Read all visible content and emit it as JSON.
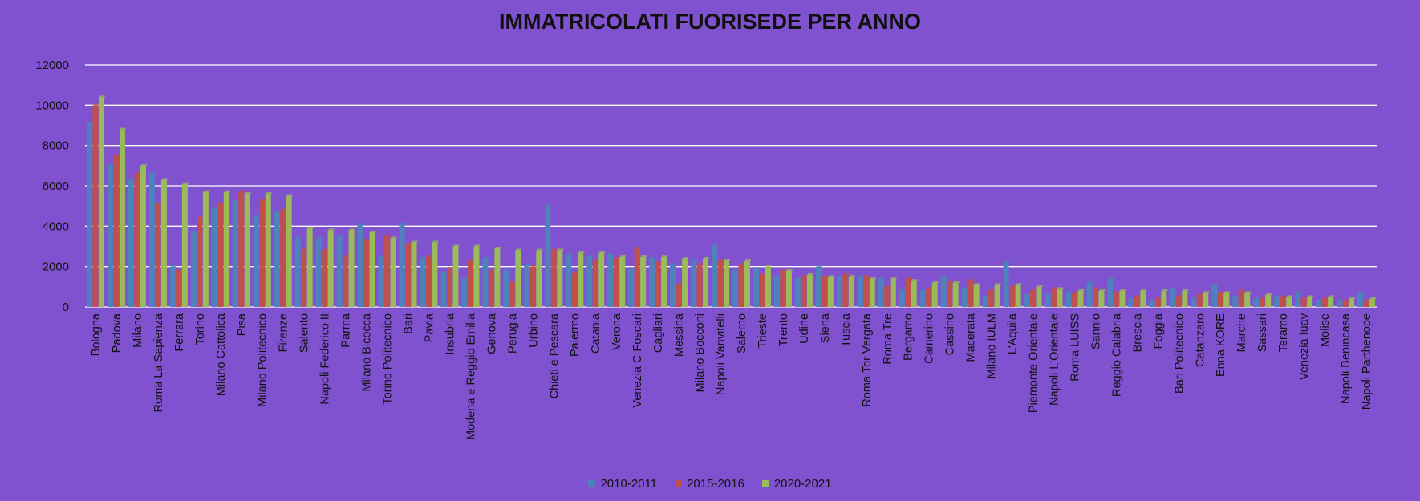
{
  "chart_data": {
    "type": "bar",
    "title": "IMMATRICOLATI FUORISEDE PER ANNO",
    "ylim": [
      0,
      12000
    ],
    "yticks": [
      0,
      2000,
      4000,
      6000,
      8000,
      10000,
      12000
    ],
    "grid": true,
    "legend_position": "bottom",
    "categories": [
      "Bologna",
      "Padova",
      "Milano",
      "Roma La Sapienza",
      "Ferrara",
      "Torino",
      "Milano Cattolica",
      "Pisa",
      "Milano Politecnico",
      "Firenze",
      "Salento",
      "Napoli Federico II",
      "Parma",
      "Milano Bicocca",
      "Torino Politecnico",
      "Bari",
      "Pavia",
      "Insubria",
      "Modena e Reggio Emilia",
      "Genova",
      "Perugia",
      "Urbino",
      "Chieti e Pescara",
      "Palermo",
      "Catania",
      "Verona",
      "Venezia C Foscari",
      "Cagliari",
      "Messina",
      "Milano Bocconi",
      "Napoli Vanvitelli",
      "Salerno",
      "Trieste",
      "Trento",
      "Udine",
      "Siena",
      "Tuscia",
      "Roma Tor Vergata",
      "Roma Tre",
      "Bergamo",
      "Camerino",
      "Cassino",
      "Macerata",
      "Milano IULM",
      "L'Aquila",
      "Piemonte Orientale",
      "Napoli L'Orientale",
      "Roma LUISS",
      "Sannio",
      "Reggio Calabria",
      "Brescia",
      "Foggia",
      "Bari Politecnico",
      "Catanzaro",
      "Enna KORE",
      "Marche",
      "Sassari",
      "Teramo",
      "Venezia Iuav",
      "Molise",
      "Napoli Benincasa",
      "Napoli Parthenope"
    ],
    "series": [
      {
        "name": "2010-2011",
        "color": "#4f81bd",
        "values": [
          9100,
          7000,
          6300,
          6600,
          2000,
          3700,
          4900,
          5200,
          4500,
          4700,
          3400,
          3400,
          3500,
          4100,
          2500,
          4100,
          2400,
          1700,
          1400,
          2400,
          1800,
          2100,
          5000,
          2600,
          2500,
          2600,
          1900,
          2400,
          2100,
          2300,
          3000,
          1800,
          1900,
          1500,
          1400,
          2000,
          1500,
          1500,
          1400,
          800,
          800,
          1500,
          900,
          500,
          2200,
          600,
          600,
          700,
          1200,
          1400,
          400,
          300,
          900,
          400,
          1100,
          500,
          400,
          500,
          700,
          300,
          300,
          700
        ]
      },
      {
        "name": "2015-2016",
        "color": "#c0504d",
        "values": [
          10000,
          7500,
          6600,
          5100,
          1800,
          4400,
          5100,
          5700,
          5300,
          4800,
          2800,
          2800,
          2500,
          3300,
          3500,
          3100,
          2500,
          1900,
          2300,
          1800,
          1200,
          2000,
          2800,
          1700,
          2300,
          2400,
          2900,
          2200,
          1100,
          2100,
          2300,
          2100,
          1600,
          1800,
          1500,
          1500,
          1600,
          1500,
          1000,
          1400,
          900,
          1200,
          1300,
          800,
          1000,
          800,
          900,
          700,
          900,
          700,
          500,
          400,
          500,
          600,
          700,
          800,
          400,
          500,
          400,
          400,
          300,
          300
        ]
      },
      {
        "name": "2020-2021",
        "color": "#9bbb59",
        "values": [
          10400,
          8800,
          7000,
          6300,
          6100,
          5700,
          5700,
          5600,
          5600,
          5500,
          3900,
          3800,
          3800,
          3700,
          3400,
          3200,
          3200,
          3000,
          3000,
          2900,
          2800,
          2800,
          2800,
          2700,
          2700,
          2500,
          2500,
          2500,
          2400,
          2400,
          2300,
          2300,
          2000,
          1800,
          1600,
          1500,
          1500,
          1400,
          1400,
          1300,
          1200,
          1200,
          1100,
          1100,
          1100,
          1000,
          900,
          800,
          800,
          800,
          800,
          800,
          800,
          700,
          700,
          700,
          600,
          500,
          500,
          500,
          400,
          400
        ]
      }
    ]
  }
}
